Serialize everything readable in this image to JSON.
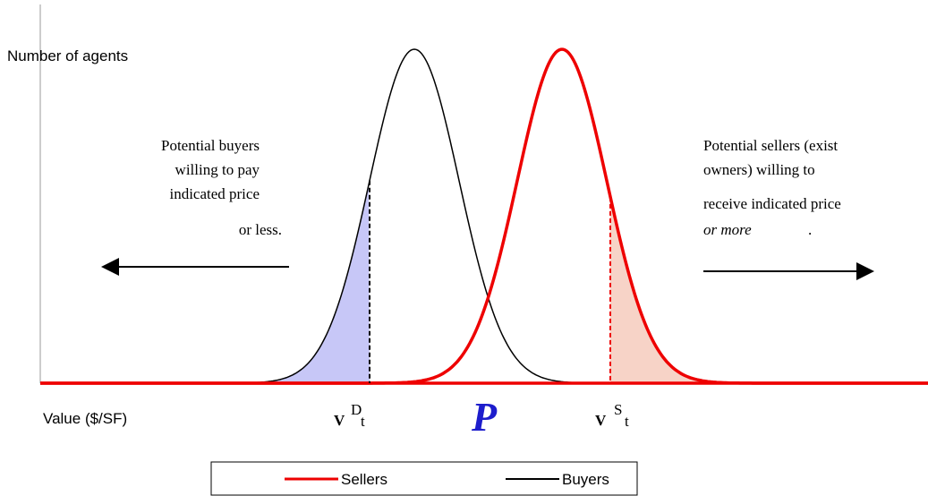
{
  "y_axis_label": "Number of agents",
  "x_axis_label": "Value ($/SF)",
  "buyers_note": {
    "lines": [
      "Potential buyers",
      "willing to pay",
      "indicated price",
      "or less."
    ]
  },
  "sellers_note": {
    "lines": [
      "Potential sellers (exist",
      "owners) willing to",
      "receive indicated price"
    ],
    "italic": "or more",
    "end": "."
  },
  "demand_marker": {
    "symbol": "V",
    "sup": "D",
    "sub": "t"
  },
  "price_marker": "P",
  "supply_marker": {
    "symbol": "V",
    "sup": "S",
    "sub": "t"
  },
  "legend": {
    "sellers": "Sellers",
    "buyers": "Buyers"
  }
}
